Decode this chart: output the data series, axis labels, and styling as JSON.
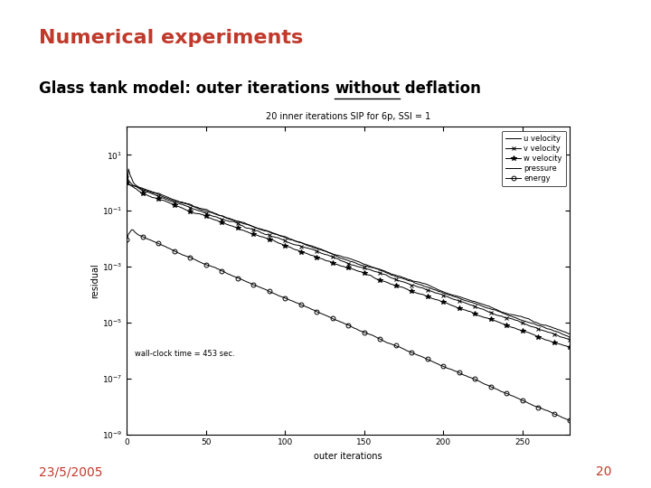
{
  "title": "Numerical experiments",
  "subtitle_before": "Glass tank model: outer iterations ",
  "subtitle_under": "without",
  "subtitle_after": " deflation",
  "plot_title": "20 inner iterations SIP for 6p, SSI = 1",
  "xlabel": "outer iterations",
  "ylabel": "residual",
  "annotation": "wall-clock time = 453 sec.",
  "date": "23/5/2005",
  "page": "20",
  "x_ticks": [
    0,
    50,
    100,
    150,
    200,
    250
  ],
  "background_color": "#ffffff",
  "title_color": "#c0392b",
  "subtitle_color": "#000000",
  "date_color": "#c0392b",
  "page_color": "#c0392b",
  "line_color": "#000000",
  "title_fontsize": 16,
  "subtitle_fontsize": 12,
  "date_fontsize": 10
}
